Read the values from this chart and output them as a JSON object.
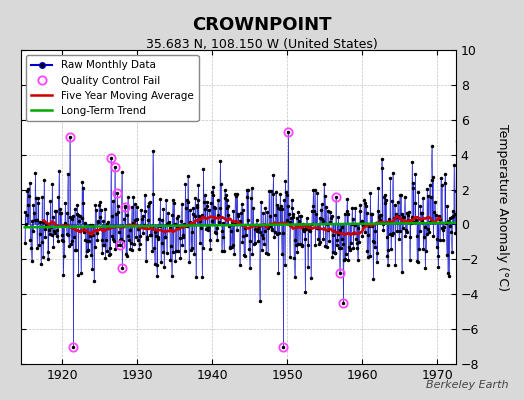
{
  "title": "CROWNPOINT",
  "subtitle": "35.683 N, 108.150 W (United States)",
  "ylabel": "Temperature Anomaly (°C)",
  "watermark": "Berkeley Earth",
  "ylim": [
    -8,
    10
  ],
  "xlim": [
    1914.5,
    1972.5
  ],
  "xticks": [
    1920,
    1930,
    1940,
    1950,
    1960,
    1970
  ],
  "yticks": [
    -8,
    -6,
    -4,
    -2,
    0,
    2,
    4,
    6,
    8,
    10
  ],
  "bg_color": "#d9d9d9",
  "plot_bg_color": "#ffffff",
  "raw_color": "#0000cc",
  "raw_dot_color": "#000000",
  "qc_color": "#ff44ff",
  "moving_avg_color": "#cc0000",
  "trend_color": "#00aa00",
  "legend_loc": "upper left",
  "title_fontsize": 13,
  "subtitle_fontsize": 9,
  "tick_fontsize": 9,
  "ylabel_fontsize": 9
}
